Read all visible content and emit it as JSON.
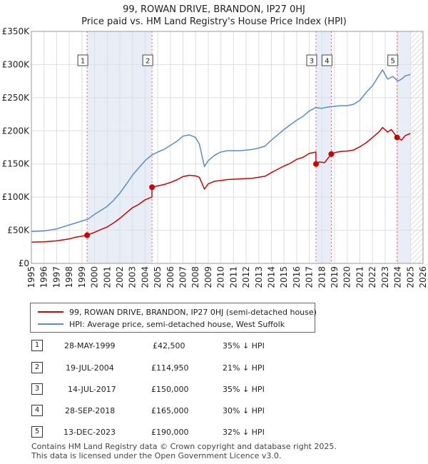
{
  "header": {
    "title_line1": "99, ROWAN DRIVE, BRANDON, IP27 0HJ",
    "title_line2": "Price paid vs. HM Land Registry's House Price Index (HPI)"
  },
  "chart_data": {
    "type": "line",
    "title": "99, ROWAN DRIVE, BRANDON, IP27 0HJ",
    "subtitle": "Price paid vs. HM Land Registry's House Price Index (HPI)",
    "xlabel": "",
    "ylabel": "",
    "xlim": [
      1995,
      2026
    ],
    "ylim": [
      0,
      350000
    ],
    "grid": true,
    "x_ticks": [
      1995,
      1996,
      1997,
      1998,
      1999,
      2000,
      2001,
      2002,
      2003,
      2004,
      2005,
      2006,
      2007,
      2008,
      2009,
      2010,
      2011,
      2012,
      2013,
      2014,
      2015,
      2016,
      2017,
      2018,
      2019,
      2020,
      2021,
      2022,
      2023,
      2024,
      2025,
      2026
    ],
    "y_ticks": [
      {
        "value": 0,
        "label": "£0"
      },
      {
        "value": 50000,
        "label": "£50K"
      },
      {
        "value": 100000,
        "label": "£100K"
      },
      {
        "value": 150000,
        "label": "£150K"
      },
      {
        "value": 200000,
        "label": "£200K"
      },
      {
        "value": 250000,
        "label": "£250K"
      },
      {
        "value": 300000,
        "label": "£300K"
      },
      {
        "value": 350000,
        "label": "£350K"
      }
    ],
    "series": [
      {
        "name": "99, ROWAN DRIVE, BRANDON, IP27 0HJ (semi-detached house)",
        "color": "#cc0000",
        "x": [
          1995.0,
          1996.0,
          1997.0,
          1997.5,
          1998.0,
          1998.5,
          1999.0,
          1999.41,
          2000.0,
          2000.5,
          2001.0,
          2001.5,
          2002.0,
          2002.5,
          2003.0,
          2003.5,
          2004.0,
          2004.54,
          2004.55,
          2005.0,
          2005.5,
          2006.0,
          2006.5,
          2007.0,
          2007.5,
          2008.0,
          2008.3,
          2008.7,
          2009.0,
          2009.5,
          2010.0,
          2010.5,
          2011.0,
          2011.5,
          2012.0,
          2012.5,
          2013.0,
          2013.5,
          2014.0,
          2014.5,
          2015.0,
          2015.5,
          2016.0,
          2016.5,
          2017.0,
          2017.52,
          2017.53,
          2017.8,
          2018.2,
          2018.74,
          2019.0,
          2019.5,
          2020.0,
          2020.5,
          2021.0,
          2021.5,
          2022.0,
          2022.5,
          2022.8,
          2023.2,
          2023.5,
          2023.95,
          2024.3,
          2024.6,
          2025.0
        ],
        "values": [
          32000,
          32500,
          34000,
          35500,
          37000,
          39500,
          41000,
          42500,
          47000,
          51000,
          55000,
          61000,
          68000,
          76000,
          84000,
          89000,
          96000,
          100000,
          114950,
          117000,
          119000,
          122000,
          126000,
          131000,
          133000,
          132000,
          130000,
          112000,
          120000,
          124000,
          125000,
          126500,
          127000,
          127500,
          128000,
          128500,
          130000,
          131500,
          137000,
          142000,
          147000,
          151000,
          157000,
          160000,
          166000,
          168000,
          150000,
          153000,
          152000,
          165000,
          167000,
          169000,
          169500,
          171000,
          176000,
          182000,
          190000,
          198000,
          205000,
          198000,
          202000,
          190000,
          186000,
          193000,
          196000
        ]
      },
      {
        "name": "HPI: Average price, semi-detached house, West Suffolk",
        "color": "#5b8cc4",
        "x": [
          1995.0,
          1996.0,
          1997.0,
          1997.5,
          1998.0,
          1998.5,
          1999.0,
          1999.5,
          2000.0,
          2000.5,
          2001.0,
          2001.5,
          2002.0,
          2002.5,
          2003.0,
          2003.5,
          2004.0,
          2004.5,
          2005.0,
          2005.5,
          2006.0,
          2006.5,
          2007.0,
          2007.5,
          2008.0,
          2008.3,
          2008.7,
          2009.0,
          2009.5,
          2010.0,
          2010.5,
          2011.0,
          2011.5,
          2012.0,
          2012.5,
          2013.0,
          2013.5,
          2014.0,
          2014.5,
          2015.0,
          2015.5,
          2016.0,
          2016.5,
          2017.0,
          2017.5,
          2018.0,
          2018.5,
          2019.0,
          2019.5,
          2020.0,
          2020.5,
          2021.0,
          2021.5,
          2022.0,
          2022.5,
          2022.8,
          2023.2,
          2023.6,
          2024.0,
          2024.3,
          2024.6,
          2025.0
        ],
        "values": [
          48000,
          49000,
          52000,
          55000,
          58000,
          61000,
          64000,
          67000,
          74000,
          80000,
          86000,
          95000,
          106000,
          119000,
          133000,
          144000,
          155000,
          163000,
          168000,
          172000,
          178000,
          184000,
          192000,
          194000,
          190000,
          180000,
          146000,
          155000,
          163000,
          168000,
          170000,
          170000,
          170000,
          171000,
          172000,
          174000,
          177000,
          186000,
          194000,
          202000,
          209000,
          216000,
          222000,
          230000,
          235000,
          234000,
          236000,
          237000,
          238000,
          238000,
          240000,
          246000,
          258000,
          268000,
          283000,
          292000,
          278000,
          282000,
          275000,
          278000,
          283000,
          285000
        ]
      }
    ],
    "sales": [
      {
        "label": "1",
        "x": 1999.41,
        "value": 42500
      },
      {
        "label": "2",
        "x": 2004.55,
        "value": 114950
      },
      {
        "label": "3",
        "x": 2017.53,
        "value": 150000
      },
      {
        "label": "4",
        "x": 2018.74,
        "value": 165000
      },
      {
        "label": "5",
        "x": 2023.95,
        "value": 190000
      }
    ],
    "shaded_spans": [
      [
        1999.41,
        2004.55
      ],
      [
        2017.53,
        2018.74
      ],
      [
        2023.95,
        2025.0
      ]
    ],
    "forecast_hatch_from": 2025.0
  },
  "legend": {
    "property_label": "99, ROWAN DRIVE, BRANDON, IP27 0HJ (semi-detached house)",
    "hpi_label": "HPI: Average price, semi-detached house, West Suffolk",
    "property_color": "#cc0000",
    "hpi_color": "#5b8cc4"
  },
  "transactions": [
    {
      "num": "1",
      "date": "28-MAY-1999",
      "price": "£42,500",
      "diff": "35% ↓ HPI"
    },
    {
      "num": "2",
      "date": "19-JUL-2004",
      "price": "£114,950",
      "diff": "21% ↓ HPI"
    },
    {
      "num": "3",
      "date": "14-JUL-2017",
      "price": "£150,000",
      "diff": "35% ↓ HPI"
    },
    {
      "num": "4",
      "date": "28-SEP-2018",
      "price": "£165,000",
      "diff": "30% ↓ HPI"
    },
    {
      "num": "5",
      "date": "13-DEC-2023",
      "price": "£190,000",
      "diff": "32% ↓ HPI"
    }
  ],
  "footer": {
    "line1": "Contains HM Land Registry data © Crown copyright and database right 2025.",
    "line2": "This data is licensed under the Open Government Licence v3.0."
  }
}
